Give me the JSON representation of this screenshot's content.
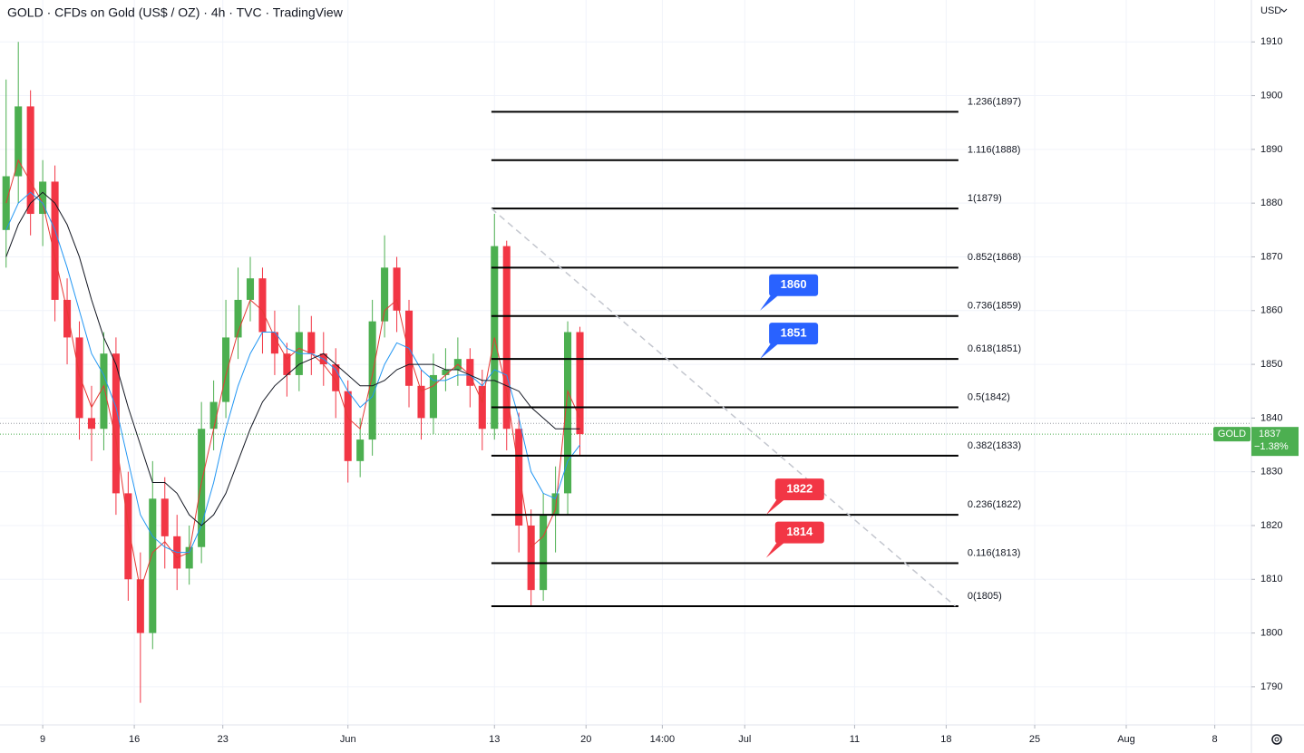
{
  "chart_data": {
    "type": "candlestick",
    "title": "GOLD · CFDs on Gold (US$ / OZ) · 4h · TVC · TradingView",
    "currency": "USD",
    "x": [
      2,
      6,
      10,
      14,
      18,
      22,
      26,
      30,
      34,
      38,
      42,
      46,
      50,
      54,
      58,
      62,
      66,
      70,
      74,
      78,
      82,
      86,
      90,
      94,
      98,
      102,
      106,
      110,
      114,
      118,
      122,
      126,
      130,
      134,
      138,
      142,
      146,
      150,
      154,
      158,
      162,
      166,
      170,
      174,
      178,
      182,
      186,
      190
    ],
    "open": [
      1875,
      1885,
      1898,
      1878,
      1884,
      1862,
      1855,
      1840,
      1838,
      1852,
      1826,
      1810,
      1800,
      1825,
      1818,
      1812,
      1816,
      1838,
      1843,
      1855,
      1862,
      1866,
      1856,
      1852,
      1848,
      1856,
      1852,
      1850,
      1845,
      1832,
      1836,
      1858,
      1868,
      1860,
      1846,
      1840,
      1848,
      1849,
      1851,
      1846,
      1838,
      1872,
      1838,
      1820,
      1808,
      1822,
      1826,
      1856
    ],
    "high": [
      1903,
      1910,
      1901,
      1888,
      1887,
      1866,
      1858,
      1846,
      1856,
      1855,
      1830,
      1815,
      1832,
      1829,
      1822,
      1820,
      1843,
      1847,
      1862,
      1868,
      1870,
      1868,
      1860,
      1854,
      1861,
      1859,
      1856,
      1853,
      1847,
      1840,
      1862,
      1874,
      1870,
      1862,
      1849,
      1852,
      1853,
      1855,
      1853,
      1849,
      1878,
      1873,
      1841,
      1823,
      1826,
      1831,
      1858,
      1857
    ],
    "low": [
      1868,
      1880,
      1874,
      1872,
      1858,
      1850,
      1836,
      1832,
      1834,
      1822,
      1806,
      1787,
      1797,
      1812,
      1808,
      1809,
      1813,
      1834,
      1840,
      1851,
      1858,
      1852,
      1848,
      1844,
      1845,
      1848,
      1846,
      1840,
      1828,
      1829,
      1833,
      1855,
      1856,
      1842,
      1836,
      1837,
      1845,
      1846,
      1842,
      1834,
      1836,
      1834,
      1815,
      1805,
      1806,
      1815,
      1822,
      1833
    ],
    "close": [
      1885,
      1898,
      1878,
      1884,
      1862,
      1855,
      1840,
      1838,
      1852,
      1826,
      1810,
      1800,
      1825,
      1818,
      1812,
      1816,
      1838,
      1843,
      1855,
      1862,
      1866,
      1856,
      1852,
      1848,
      1856,
      1852,
      1850,
      1845,
      1832,
      1836,
      1858,
      1868,
      1860,
      1846,
      1840,
      1848,
      1849,
      1851,
      1846,
      1838,
      1872,
      1838,
      1820,
      1808,
      1822,
      1826,
      1856,
      1837
    ],
    "up_color": "#4caf50",
    "down_color": "#f23645",
    "indicators": [
      {
        "color": "#e53935",
        "values": [
          1880,
          1888,
          1884,
          1880,
          1870,
          1860,
          1848,
          1842,
          1846,
          1836,
          1820,
          1808,
          1815,
          1817,
          1814,
          1815,
          1828,
          1838,
          1848,
          1856,
          1862,
          1860,
          1855,
          1851,
          1853,
          1852,
          1850,
          1847,
          1840,
          1838,
          1848,
          1860,
          1862,
          1852,
          1845,
          1846,
          1848,
          1850,
          1848,
          1843,
          1855,
          1845,
          1830,
          1816,
          1818,
          1823,
          1845,
          1840
        ]
      },
      {
        "color": "#2196f3",
        "values": [
          1875,
          1880,
          1882,
          1880,
          1875,
          1868,
          1860,
          1852,
          1848,
          1842,
          1832,
          1822,
          1818,
          1816,
          1815,
          1815,
          1820,
          1828,
          1838,
          1846,
          1852,
          1856,
          1856,
          1853,
          1852,
          1852,
          1851,
          1849,
          1845,
          1842,
          1844,
          1850,
          1854,
          1853,
          1849,
          1847,
          1847,
          1848,
          1848,
          1846,
          1849,
          1848,
          1840,
          1830,
          1826,
          1825,
          1832,
          1835
        ]
      },
      {
        "color": "#131722",
        "values": [
          1870,
          1876,
          1880,
          1882,
          1880,
          1876,
          1870,
          1862,
          1855,
          1850,
          1842,
          1835,
          1828,
          1828,
          1826,
          1822,
          1820,
          1822,
          1826,
          1832,
          1838,
          1843,
          1846,
          1848,
          1850,
          1851,
          1852,
          1850,
          1848,
          1846,
          1846,
          1847,
          1849,
          1850,
          1850,
          1850,
          1849,
          1849,
          1848,
          1847,
          1847,
          1846,
          1845,
          1842,
          1840,
          1838,
          1838,
          1838
        ]
      }
    ],
    "fib_x": [
      161,
      314
    ],
    "fib_levels": [
      {
        "value": 1897,
        "label": "1.236(1897)"
      },
      {
        "value": 1888,
        "label": "1.116(1888)"
      },
      {
        "value": 1879,
        "label": "1(1879)"
      },
      {
        "value": 1868,
        "label": "0.852(1868)"
      },
      {
        "value": 1859,
        "label": "0.736(1859)"
      },
      {
        "value": 1851,
        "label": "0.618(1851)"
      },
      {
        "value": 1842,
        "label": "0.5(1842)"
      },
      {
        "value": 1833,
        "label": "0.382(1833)"
      },
      {
        "value": 1822,
        "label": "0.236(1822)"
      },
      {
        "value": 1813,
        "label": "0.116(1813)"
      },
      {
        "value": 1805,
        "label": "0(1805)"
      }
    ],
    "trendline": {
      "x": [
        161,
        313
      ],
      "y": [
        1879,
        1805
      ]
    },
    "callouts": [
      {
        "x": 249,
        "value": 1860,
        "color": "#2962ff"
      },
      {
        "x": 249,
        "value": 1851,
        "color": "#2962ff"
      },
      {
        "x": 251,
        "value": 1822,
        "color": "#f23645"
      },
      {
        "x": 251,
        "value": 1814,
        "color": "#f23645"
      }
    ],
    "last": {
      "label": "GOLD",
      "value": 1837,
      "change_label": "−1.38%",
      "color": "#4caf50"
    },
    "reference_line": 1839,
    "xlim": [
      0,
      410
    ],
    "ylim": [
      1782.9,
      1917.8
    ],
    "xticks": [
      {
        "value": 14,
        "label": "9"
      },
      {
        "value": 44,
        "label": "16"
      },
      {
        "value": 73,
        "label": "23"
      },
      {
        "value": 114,
        "label": "Jun"
      },
      {
        "value": 162,
        "label": "13"
      },
      {
        "value": 192,
        "label": "20"
      },
      {
        "value": 217,
        "label": "14:00"
      },
      {
        "value": 244,
        "label": "Jul"
      },
      {
        "value": 280,
        "label": "11"
      },
      {
        "value": 310,
        "label": "18"
      },
      {
        "value": 339,
        "label": "25"
      },
      {
        "value": 369,
        "label": "Aug"
      },
      {
        "value": 398,
        "label": "8"
      }
    ],
    "yticks": [
      1790,
      1800,
      1810,
      1820,
      1830,
      1840,
      1850,
      1860,
      1870,
      1880,
      1890,
      1900,
      1910
    ],
    "grid": true
  }
}
